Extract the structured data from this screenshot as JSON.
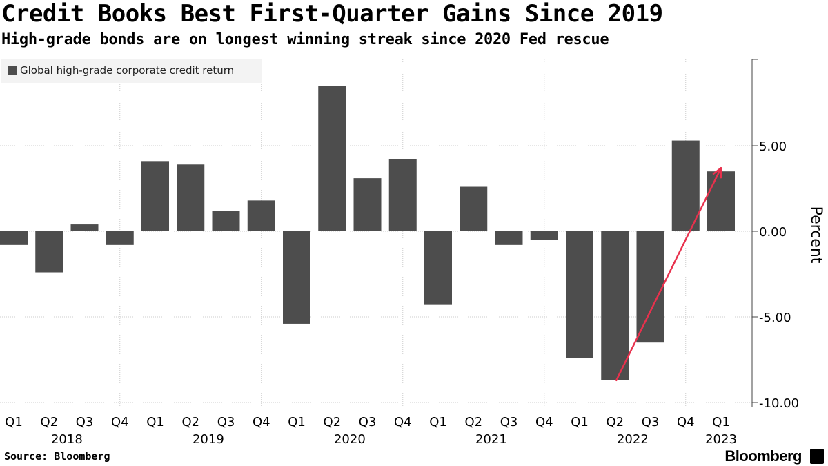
{
  "title": "Credit Books Best First-Quarter Gains Since 2019",
  "subtitle": "High-grade bonds are on longest winning streak since 2020 Fed rescue",
  "source": "Source: Bloomberg",
  "brand": "Bloomberg",
  "colors": {
    "bar": "#4d4d4d",
    "arrow": "#e8314d",
    "grid": "#cccccc",
    "axis": "#444444"
  },
  "chart_data": {
    "type": "bar",
    "categories": [
      "Q1",
      "Q2",
      "Q3",
      "Q4",
      "Q1",
      "Q2",
      "Q3",
      "Q4",
      "Q1",
      "Q2",
      "Q3",
      "Q4",
      "Q1",
      "Q2",
      "Q3",
      "Q4",
      "Q1",
      "Q2",
      "Q3",
      "Q4",
      "Q1"
    ],
    "years": [
      {
        "label": "2018",
        "start": 0,
        "end": 3
      },
      {
        "label": "2019",
        "start": 4,
        "end": 7
      },
      {
        "label": "2020",
        "start": 8,
        "end": 11
      },
      {
        "label": "2021",
        "start": 12,
        "end": 15
      },
      {
        "label": "2022",
        "start": 16,
        "end": 19
      },
      {
        "label": "2023",
        "start": 20,
        "end": 20
      }
    ],
    "series": [
      {
        "name": "Global high-grade corporate credit return",
        "values": [
          -0.8,
          -2.4,
          0.4,
          -0.8,
          4.1,
          3.9,
          1.2,
          1.8,
          -5.4,
          8.5,
          3.1,
          4.2,
          -4.3,
          2.6,
          -0.8,
          -0.5,
          -7.4,
          -8.7,
          -6.5,
          5.3,
          3.5
        ]
      }
    ],
    "ylabel": "Percent",
    "ylim": [
      -10,
      10
    ],
    "yticks": [
      5,
      0,
      -5,
      -10
    ],
    "ytick_labels": [
      "5.00",
      "0.00",
      "-5.00",
      "-10.00"
    ],
    "grid": true,
    "legend_position": "top-left",
    "annotation": {
      "type": "arrow",
      "from_index": 17,
      "from_value": -8.7,
      "to_index": 20,
      "to_value": 3.7
    }
  }
}
